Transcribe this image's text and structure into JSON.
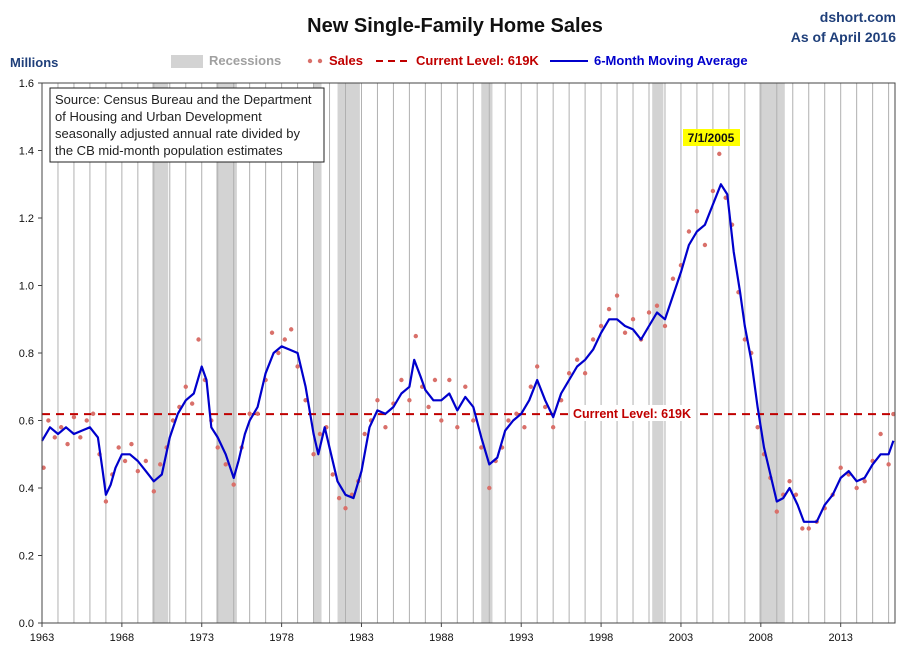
{
  "title": "New Single-Family Home Sales",
  "source_line1": "dshort.com",
  "source_line2": "As of April 2016",
  "annotation_lines": [
    "Source: Census Bureau and the Department",
    "of Housing and Urban Development",
    "seasonally adjusted annual rate divided by",
    "the CB mid-month population estimates"
  ],
  "peak_label": "7/1/2005",
  "current_label": "Current Level: 619K",
  "legend": {
    "recessions": "Recessions",
    "sales": "Sales",
    "current": "Current Level: 619K",
    "ma": "6-Month Moving Average"
  },
  "colors": {
    "recession": "#d3d3d3",
    "sales": "#d9706a",
    "current": "#c00000",
    "ma": "#0000cc",
    "peak_label_bg": "#ffff00"
  },
  "chart_data": {
    "type": "line",
    "title": "New Single-Family Home Sales",
    "ylabel": "Millions",
    "xlabel": "",
    "ylim": [
      0.0,
      1.6
    ],
    "xlim": [
      1963.0,
      2016.4
    ],
    "y_ticks": [
      "0.0",
      "0.2",
      "0.4",
      "0.6",
      "0.8",
      "1.0",
      "1.2",
      "1.4",
      "1.6"
    ],
    "x_ticks": [
      "1963",
      "1968",
      "1973",
      "1978",
      "1983",
      "1988",
      "1993",
      "1998",
      "2003",
      "2008",
      "2013"
    ],
    "grid": "vertical",
    "legend_position": "top",
    "current_level": 0.619,
    "recessions": [
      [
        1969.9,
        1970.9
      ],
      [
        1973.9,
        1975.2
      ],
      [
        1980.0,
        1980.5
      ],
      [
        1981.5,
        1982.9
      ],
      [
        1990.5,
        1991.2
      ],
      [
        2001.2,
        2001.9
      ],
      [
        2007.9,
        2009.5
      ]
    ],
    "series": [
      {
        "name": "6-Month Moving Average",
        "kind": "line",
        "points": [
          [
            1963.0,
            0.54
          ],
          [
            1963.5,
            0.58
          ],
          [
            1964.0,
            0.56
          ],
          [
            1964.5,
            0.58
          ],
          [
            1965.0,
            0.56
          ],
          [
            1965.5,
            0.57
          ],
          [
            1966.0,
            0.58
          ],
          [
            1966.5,
            0.55
          ],
          [
            1966.8,
            0.45
          ],
          [
            1967.0,
            0.38
          ],
          [
            1967.3,
            0.41
          ],
          [
            1967.6,
            0.46
          ],
          [
            1968.0,
            0.5
          ],
          [
            1968.5,
            0.5
          ],
          [
            1969.0,
            0.48
          ],
          [
            1969.5,
            0.45
          ],
          [
            1970.0,
            0.42
          ],
          [
            1970.5,
            0.44
          ],
          [
            1971.0,
            0.55
          ],
          [
            1971.5,
            0.62
          ],
          [
            1972.0,
            0.66
          ],
          [
            1972.5,
            0.68
          ],
          [
            1973.0,
            0.76
          ],
          [
            1973.3,
            0.72
          ],
          [
            1973.6,
            0.58
          ],
          [
            1974.0,
            0.55
          ],
          [
            1974.5,
            0.5
          ],
          [
            1975.0,
            0.43
          ],
          [
            1975.3,
            0.48
          ],
          [
            1975.7,
            0.56
          ],
          [
            1976.0,
            0.6
          ],
          [
            1976.5,
            0.64
          ],
          [
            1977.0,
            0.74
          ],
          [
            1977.5,
            0.8
          ],
          [
            1978.0,
            0.82
          ],
          [
            1978.5,
            0.81
          ],
          [
            1979.0,
            0.8
          ],
          [
            1979.5,
            0.7
          ],
          [
            1980.0,
            0.56
          ],
          [
            1980.3,
            0.5
          ],
          [
            1980.7,
            0.58
          ],
          [
            1981.0,
            0.52
          ],
          [
            1981.5,
            0.42
          ],
          [
            1982.0,
            0.38
          ],
          [
            1982.5,
            0.37
          ],
          [
            1983.0,
            0.45
          ],
          [
            1983.5,
            0.58
          ],
          [
            1984.0,
            0.63
          ],
          [
            1984.5,
            0.62
          ],
          [
            1985.0,
            0.64
          ],
          [
            1985.5,
            0.68
          ],
          [
            1986.0,
            0.7
          ],
          [
            1986.3,
            0.78
          ],
          [
            1986.7,
            0.73
          ],
          [
            1987.0,
            0.69
          ],
          [
            1987.5,
            0.66
          ],
          [
            1988.0,
            0.66
          ],
          [
            1988.5,
            0.68
          ],
          [
            1989.0,
            0.63
          ],
          [
            1989.5,
            0.67
          ],
          [
            1990.0,
            0.64
          ],
          [
            1990.5,
            0.55
          ],
          [
            1991.0,
            0.47
          ],
          [
            1991.5,
            0.49
          ],
          [
            1992.0,
            0.57
          ],
          [
            1992.5,
            0.6
          ],
          [
            1993.0,
            0.62
          ],
          [
            1993.5,
            0.66
          ],
          [
            1994.0,
            0.72
          ],
          [
            1994.5,
            0.66
          ],
          [
            1995.0,
            0.61
          ],
          [
            1995.5,
            0.68
          ],
          [
            1996.0,
            0.72
          ],
          [
            1996.5,
            0.76
          ],
          [
            1997.0,
            0.78
          ],
          [
            1997.5,
            0.81
          ],
          [
            1998.0,
            0.86
          ],
          [
            1998.5,
            0.9
          ],
          [
            1999.0,
            0.9
          ],
          [
            1999.5,
            0.88
          ],
          [
            2000.0,
            0.87
          ],
          [
            2000.5,
            0.84
          ],
          [
            2001.0,
            0.88
          ],
          [
            2001.5,
            0.92
          ],
          [
            2002.0,
            0.9
          ],
          [
            2002.5,
            0.97
          ],
          [
            2003.0,
            1.04
          ],
          [
            2003.5,
            1.12
          ],
          [
            2004.0,
            1.16
          ],
          [
            2004.5,
            1.18
          ],
          [
            2005.0,
            1.24
          ],
          [
            2005.5,
            1.3
          ],
          [
            2005.9,
            1.27
          ],
          [
            2006.3,
            1.1
          ],
          [
            2006.7,
            0.98
          ],
          [
            2007.0,
            0.88
          ],
          [
            2007.4,
            0.78
          ],
          [
            2007.8,
            0.64
          ],
          [
            2008.2,
            0.52
          ],
          [
            2008.6,
            0.44
          ],
          [
            2009.0,
            0.36
          ],
          [
            2009.4,
            0.37
          ],
          [
            2009.8,
            0.4
          ],
          [
            2010.3,
            0.35
          ],
          [
            2010.7,
            0.3
          ],
          [
            2011.0,
            0.3
          ],
          [
            2011.5,
            0.3
          ],
          [
            2012.0,
            0.35
          ],
          [
            2012.5,
            0.38
          ],
          [
            2013.0,
            0.43
          ],
          [
            2013.5,
            0.45
          ],
          [
            2014.0,
            0.42
          ],
          [
            2014.5,
            0.43
          ],
          [
            2015.0,
            0.47
          ],
          [
            2015.5,
            0.5
          ],
          [
            2016.0,
            0.5
          ],
          [
            2016.3,
            0.54
          ]
        ]
      },
      {
        "name": "Sales",
        "kind": "scatter",
        "points": [
          [
            1963.1,
            0.46
          ],
          [
            1963.4,
            0.6
          ],
          [
            1963.8,
            0.55
          ],
          [
            1964.2,
            0.58
          ],
          [
            1964.6,
            0.53
          ],
          [
            1965.0,
            0.61
          ],
          [
            1965.4,
            0.55
          ],
          [
            1965.8,
            0.6
          ],
          [
            1966.2,
            0.62
          ],
          [
            1966.6,
            0.5
          ],
          [
            1967.0,
            0.36
          ],
          [
            1967.4,
            0.44
          ],
          [
            1967.8,
            0.52
          ],
          [
            1968.2,
            0.48
          ],
          [
            1968.6,
            0.53
          ],
          [
            1969.0,
            0.45
          ],
          [
            1969.5,
            0.48
          ],
          [
            1970.0,
            0.39
          ],
          [
            1970.4,
            0.47
          ],
          [
            1970.8,
            0.52
          ],
          [
            1971.2,
            0.6
          ],
          [
            1971.6,
            0.64
          ],
          [
            1972.0,
            0.7
          ],
          [
            1972.4,
            0.65
          ],
          [
            1972.8,
            0.84
          ],
          [
            1973.2,
            0.72
          ],
          [
            1973.6,
            0.6
          ],
          [
            1974.0,
            0.52
          ],
          [
            1974.5,
            0.47
          ],
          [
            1975.0,
            0.41
          ],
          [
            1975.5,
            0.52
          ],
          [
            1976.0,
            0.62
          ],
          [
            1976.5,
            0.62
          ],
          [
            1977.0,
            0.72
          ],
          [
            1977.4,
            0.86
          ],
          [
            1977.8,
            0.8
          ],
          [
            1978.2,
            0.84
          ],
          [
            1978.6,
            0.87
          ],
          [
            1979.0,
            0.76
          ],
          [
            1979.5,
            0.66
          ],
          [
            1980.0,
            0.5
          ],
          [
            1980.4,
            0.56
          ],
          [
            1980.8,
            0.58
          ],
          [
            1981.2,
            0.44
          ],
          [
            1981.6,
            0.37
          ],
          [
            1982.0,
            0.34
          ],
          [
            1982.4,
            0.38
          ],
          [
            1982.8,
            0.42
          ],
          [
            1983.2,
            0.56
          ],
          [
            1983.6,
            0.6
          ],
          [
            1984.0,
            0.66
          ],
          [
            1984.5,
            0.58
          ],
          [
            1985.0,
            0.65
          ],
          [
            1985.5,
            0.72
          ],
          [
            1986.0,
            0.66
          ],
          [
            1986.4,
            0.85
          ],
          [
            1986.8,
            0.7
          ],
          [
            1987.2,
            0.64
          ],
          [
            1987.6,
            0.72
          ],
          [
            1988.0,
            0.6
          ],
          [
            1988.5,
            0.72
          ],
          [
            1989.0,
            0.58
          ],
          [
            1989.5,
            0.7
          ],
          [
            1990.0,
            0.6
          ],
          [
            1990.5,
            0.52
          ],
          [
            1991.0,
            0.4
          ],
          [
            1991.4,
            0.48
          ],
          [
            1991.8,
            0.52
          ],
          [
            1992.2,
            0.6
          ],
          [
            1992.7,
            0.62
          ],
          [
            1993.2,
            0.58
          ],
          [
            1993.6,
            0.7
          ],
          [
            1994.0,
            0.76
          ],
          [
            1994.5,
            0.64
          ],
          [
            1995.0,
            0.58
          ],
          [
            1995.5,
            0.66
          ],
          [
            1996.0,
            0.74
          ],
          [
            1996.5,
            0.78
          ],
          [
            1997.0,
            0.74
          ],
          [
            1997.5,
            0.84
          ],
          [
            1998.0,
            0.88
          ],
          [
            1998.5,
            0.93
          ],
          [
            1999.0,
            0.97
          ],
          [
            1999.5,
            0.86
          ],
          [
            2000.0,
            0.9
          ],
          [
            2000.5,
            0.84
          ],
          [
            2001.0,
            0.92
          ],
          [
            2001.5,
            0.94
          ],
          [
            2002.0,
            0.88
          ],
          [
            2002.5,
            1.02
          ],
          [
            2003.0,
            1.06
          ],
          [
            2003.5,
            1.16
          ],
          [
            2004.0,
            1.22
          ],
          [
            2004.5,
            1.12
          ],
          [
            2005.0,
            1.28
          ],
          [
            2005.4,
            1.39
          ],
          [
            2005.8,
            1.26
          ],
          [
            2006.2,
            1.18
          ],
          [
            2006.6,
            0.98
          ],
          [
            2007.0,
            0.84
          ],
          [
            2007.4,
            0.8
          ],
          [
            2007.8,
            0.58
          ],
          [
            2008.2,
            0.5
          ],
          [
            2008.6,
            0.43
          ],
          [
            2009.0,
            0.33
          ],
          [
            2009.4,
            0.38
          ],
          [
            2009.8,
            0.42
          ],
          [
            2010.2,
            0.38
          ],
          [
            2010.6,
            0.28
          ],
          [
            2011.0,
            0.28
          ],
          [
            2011.5,
            0.3
          ],
          [
            2012.0,
            0.34
          ],
          [
            2012.5,
            0.38
          ],
          [
            2013.0,
            0.46
          ],
          [
            2013.5,
            0.44
          ],
          [
            2014.0,
            0.4
          ],
          [
            2014.5,
            0.42
          ],
          [
            2015.0,
            0.48
          ],
          [
            2015.5,
            0.56
          ],
          [
            2016.0,
            0.47
          ],
          [
            2016.3,
            0.619
          ]
        ]
      }
    ]
  }
}
